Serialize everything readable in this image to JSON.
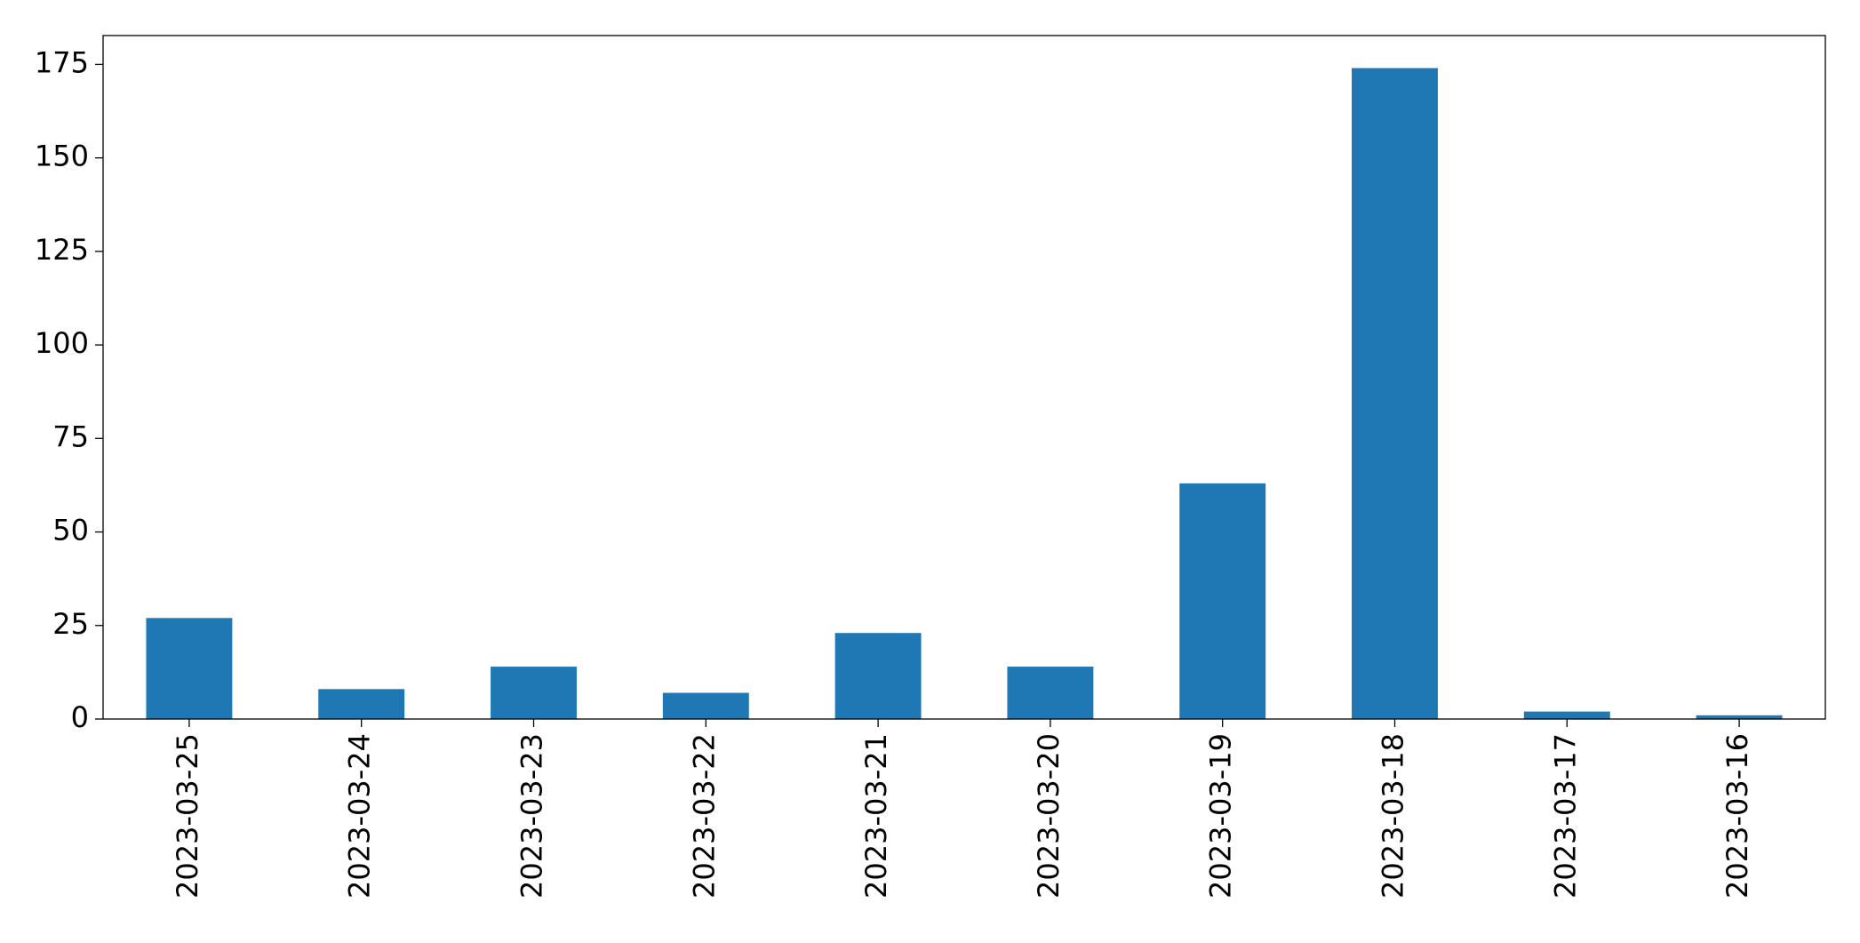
{
  "chart_data": {
    "type": "bar",
    "categories": [
      "2023-03-25",
      "2023-03-24",
      "2023-03-23",
      "2023-03-22",
      "2023-03-21",
      "2023-03-20",
      "2023-03-19",
      "2023-03-18",
      "2023-03-17",
      "2023-03-16"
    ],
    "values": [
      27,
      8,
      14,
      7,
      23,
      14,
      63,
      174,
      2,
      1
    ],
    "color": "#1f77b4",
    "ylim": [
      0,
      182.7
    ],
    "yticks": [
      0,
      25,
      50,
      75,
      100,
      125,
      150,
      175
    ],
    "grid": false
  }
}
